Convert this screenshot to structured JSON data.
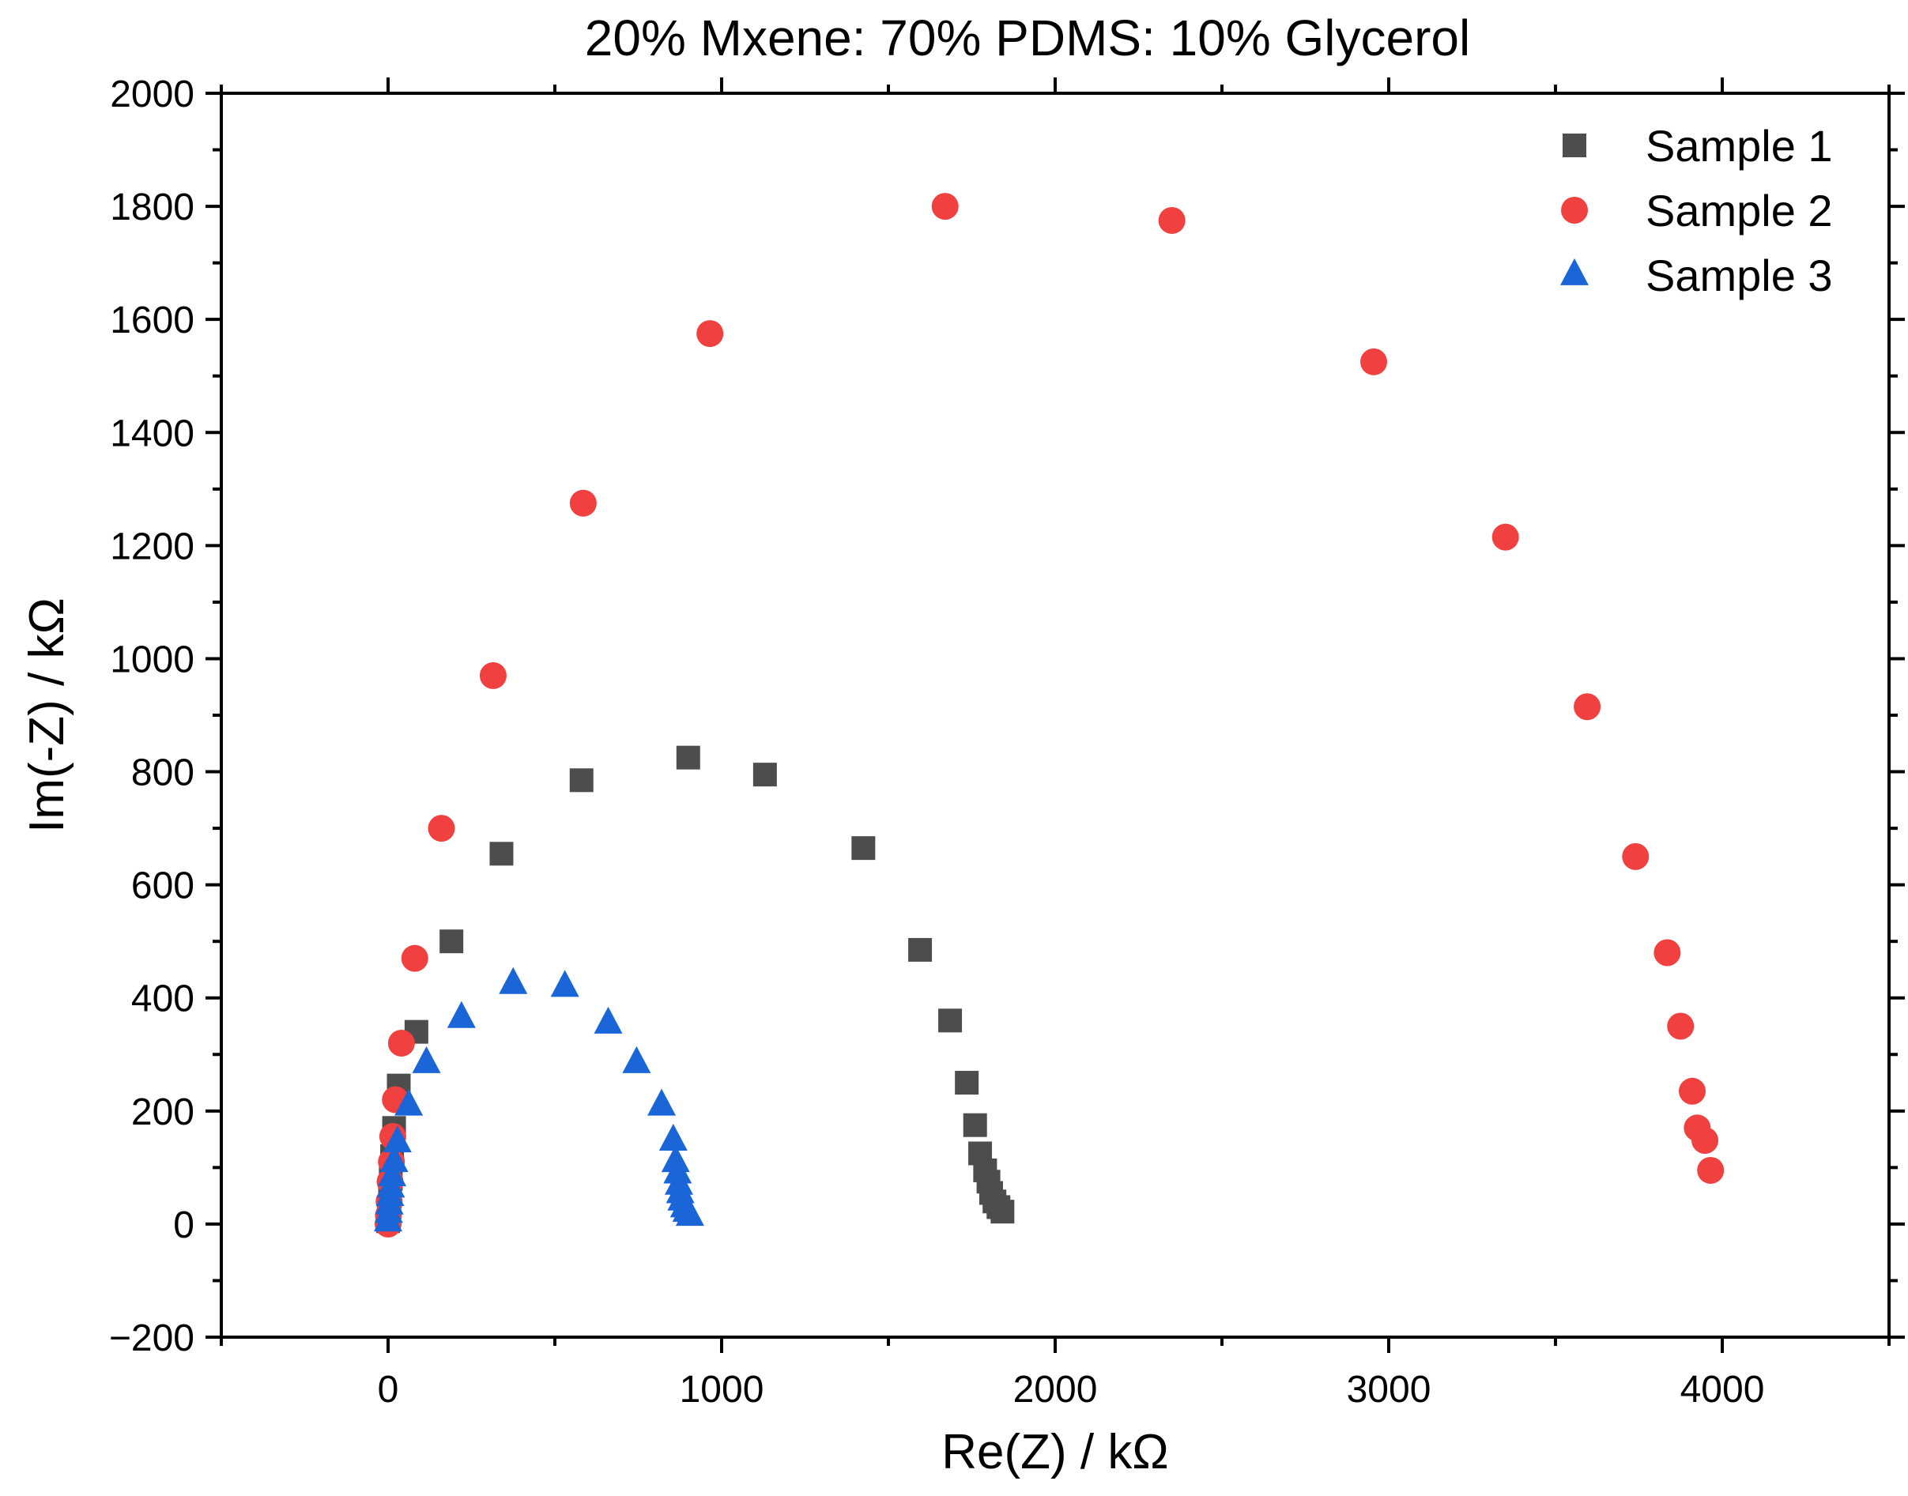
{
  "chart_data": {
    "type": "scatter",
    "title": "20% Mxene: 70% PDMS: 10% Glycerol",
    "xlabel": "Re(Z) / kΩ",
    "ylabel": "Im(-Z) / kΩ",
    "xlim": [
      -500,
      4500
    ],
    "ylim": [
      -200,
      2000
    ],
    "xticks": [
      0,
      1000,
      2000,
      3000,
      4000
    ],
    "xtick_labels": [
      "0",
      "1000",
      "2000",
      "3000",
      "4000"
    ],
    "yticks": [
      -200,
      0,
      200,
      400,
      600,
      800,
      1000,
      1200,
      1400,
      1600,
      1800,
      2000
    ],
    "ytick_labels": [
      "−200",
      "0",
      "200",
      "400",
      "600",
      "800",
      "1000",
      "1200",
      "1400",
      "1600",
      "1800",
      "2000"
    ],
    "grid": false,
    "legend_position": "top-right",
    "series": [
      {
        "name": "Sample 1",
        "marker": "square",
        "color": "#4d4d4d",
        "points": [
          [
            0,
            5
          ],
          [
            2,
            15
          ],
          [
            4,
            30
          ],
          [
            6,
            50
          ],
          [
            8,
            80
          ],
          [
            12,
            120
          ],
          [
            18,
            170
          ],
          [
            32,
            245
          ],
          [
            85,
            340
          ],
          [
            190,
            500
          ],
          [
            340,
            655
          ],
          [
            580,
            785
          ],
          [
            900,
            825
          ],
          [
            1130,
            795
          ],
          [
            1425,
            665
          ],
          [
            1595,
            485
          ],
          [
            1685,
            360
          ],
          [
            1735,
            250
          ],
          [
            1760,
            175
          ],
          [
            1775,
            125
          ],
          [
            1790,
            95
          ],
          [
            1800,
            75
          ],
          [
            1808,
            55
          ],
          [
            1818,
            40
          ],
          [
            1830,
            30
          ],
          [
            1842,
            22
          ]
        ]
      },
      {
        "name": "Sample 2",
        "marker": "circle",
        "color": "#f04040",
        "points": [
          [
            0,
            0
          ],
          [
            1,
            15
          ],
          [
            3,
            40
          ],
          [
            6,
            75
          ],
          [
            10,
            110
          ],
          [
            14,
            155
          ],
          [
            22,
            220
          ],
          [
            40,
            320
          ],
          [
            80,
            470
          ],
          [
            160,
            700
          ],
          [
            315,
            970
          ],
          [
            585,
            1275
          ],
          [
            965,
            1575
          ],
          [
            1670,
            1800
          ],
          [
            2350,
            1775
          ],
          [
            2955,
            1525
          ],
          [
            3350,
            1215
          ],
          [
            3595,
            915
          ],
          [
            3740,
            650
          ],
          [
            3835,
            480
          ],
          [
            3875,
            350
          ],
          [
            3910,
            235
          ],
          [
            3925,
            170
          ],
          [
            3948,
            148
          ],
          [
            3965,
            95
          ]
        ]
      },
      {
        "name": "Sample 3",
        "marker": "triangle",
        "color": "#1a66d9",
        "points": [
          [
            0,
            5
          ],
          [
            2,
            20
          ],
          [
            4,
            35
          ],
          [
            6,
            50
          ],
          [
            8,
            65
          ],
          [
            12,
            85
          ],
          [
            18,
            110
          ],
          [
            28,
            145
          ],
          [
            62,
            210
          ],
          [
            115,
            285
          ],
          [
            220,
            365
          ],
          [
            375,
            425
          ],
          [
            530,
            420
          ],
          [
            660,
            355
          ],
          [
            745,
            285
          ],
          [
            820,
            210
          ],
          [
            855,
            148
          ],
          [
            862,
            110
          ],
          [
            868,
            90
          ],
          [
            872,
            70
          ],
          [
            876,
            55
          ],
          [
            880,
            42
          ],
          [
            888,
            30
          ],
          [
            895,
            22
          ],
          [
            905,
            15
          ]
        ]
      }
    ]
  }
}
